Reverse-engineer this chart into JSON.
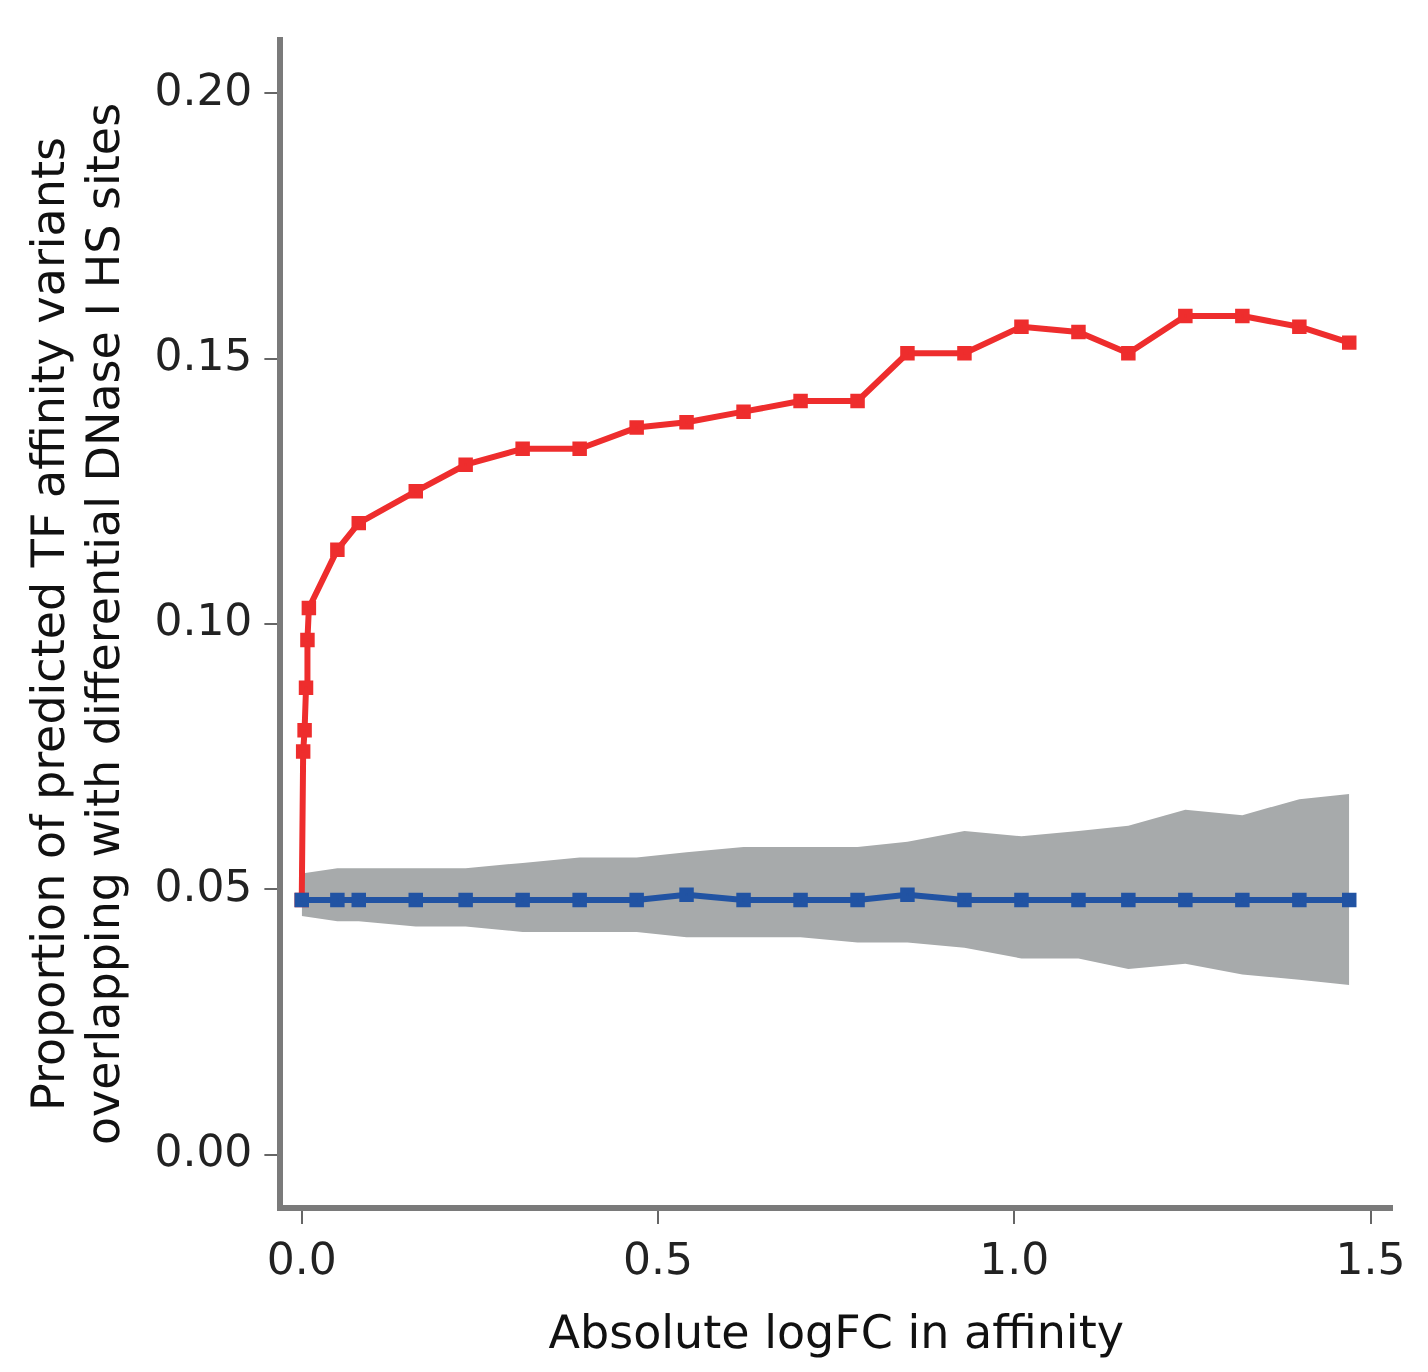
{
  "chart_data": {
    "type": "line",
    "xlabel": "Absolute logFC in affinity",
    "ylabel": "Proportion of predicted TF affinity variants\noverlapping with differential DNase I HS sites",
    "xlim": [
      -0.03,
      1.53
    ],
    "ylim": [
      -0.01,
      0.21
    ],
    "xticks": [
      {
        "value": 0,
        "label": "0.0"
      },
      {
        "value": 0.5,
        "label": "0.5"
      },
      {
        "value": 1,
        "label": "1.0"
      },
      {
        "value": 1.5,
        "label": "1.5"
      }
    ],
    "yticks": [
      {
        "value": 0,
        "label": "0.00"
      },
      0.05,
      {
        "value": 0.1,
        "label": "0.10"
      },
      0.15,
      {
        "value": 0.2,
        "label": "0.20"
      }
    ],
    "grid": false,
    "legend": false,
    "marker": "square",
    "line_style": "solid",
    "series": [
      {
        "color": "#2153a3",
        "x": [
          0,
          0.05,
          0.08,
          0.16,
          0.23,
          0.31,
          0.39,
          0.47,
          0.54,
          0.62,
          0.7,
          0.78,
          0.85,
          0.93,
          1.01,
          1.09,
          1.16,
          1.24,
          1.32,
          1.4,
          1.47
        ],
        "lower": [
          0.045,
          0.044,
          0.044,
          0.043,
          0.043,
          0.042,
          0.042,
          0.042,
          0.041,
          0.041,
          0.041,
          0.04,
          0.04,
          0.039,
          0.037,
          0.037,
          0.035,
          0.036,
          0.034,
          0.033,
          0.032
        ],
        "upper": [
          0.053,
          0.054,
          0.054,
          0.054,
          0.054,
          0.055,
          0.056,
          0.056,
          0.057,
          0.058,
          0.058,
          0.058,
          0.059,
          0.061,
          0.06,
          0.061,
          0.062,
          0.065,
          0.064,
          0.067,
          0.068
        ],
        "values": [
          0.048,
          0.048,
          0.048,
          0.048,
          0.048,
          0.048,
          0.048,
          0.048,
          0.049,
          0.048,
          0.048,
          0.048,
          0.049,
          0.048,
          0.048,
          0.048,
          0.048,
          0.048,
          0.048,
          0.048,
          0.048
        ]
      },
      {
        "color": "#ee2d2d",
        "x": [
          0,
          0.002,
          0.004,
          0.006,
          0.008,
          0.01,
          0.05,
          0.08,
          0.16,
          0.23,
          0.31,
          0.39,
          0.47,
          0.54,
          0.62,
          0.7,
          0.78,
          0.85,
          0.93,
          1.01,
          1.09,
          1.16,
          1.24,
          1.32,
          1.4,
          1.47
        ],
        "values": [
          0.048,
          0.076,
          0.08,
          0.088,
          0.097,
          0.103,
          0.114,
          0.119,
          0.125,
          0.13,
          0.133,
          0.133,
          0.137,
          0.138,
          0.14,
          0.142,
          0.142,
          0.151,
          0.151,
          0.156,
          0.155,
          0.151,
          0.158,
          0.158,
          0.156,
          0.153
        ]
      }
    ]
  }
}
